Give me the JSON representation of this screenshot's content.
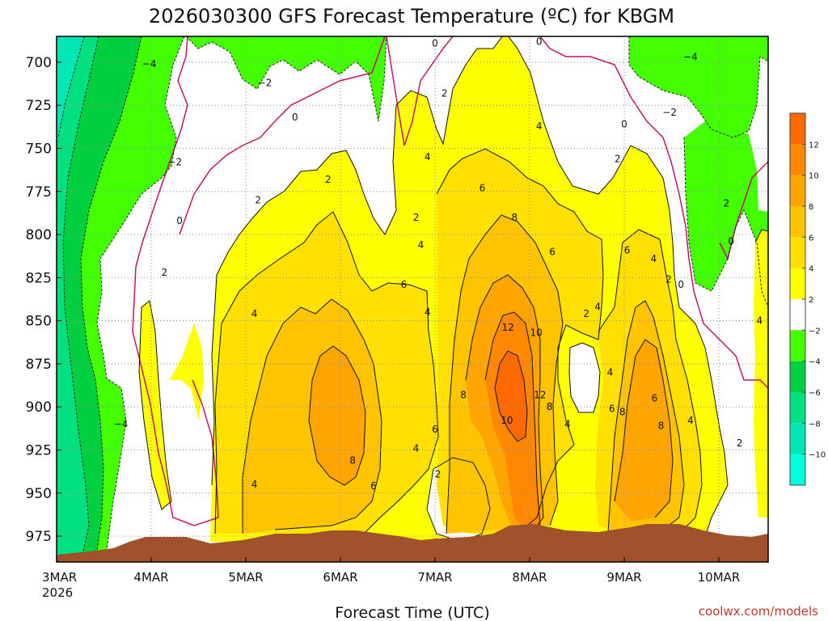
{
  "chart_data": {
    "type": "heatmap",
    "title": "2026030300 GFS Forecast Temperature (ºC) for KBGM",
    "xlabel": "Forecast Time (UTC)",
    "ylabel": "",
    "x_ticks": [
      "3MAR",
      "4MAR",
      "5MAR",
      "6MAR",
      "7MAR",
      "8MAR",
      "9MAR",
      "10MAR"
    ],
    "x_year": "2026",
    "y_ticks": [
      700,
      725,
      750,
      775,
      800,
      825,
      850,
      875,
      900,
      925,
      950,
      975
    ],
    "ylim": [
      685,
      990
    ],
    "colorbar": {
      "levels": [
        12,
        10,
        8,
        6,
        4,
        2,
        -2,
        -4,
        -6,
        -8,
        -10
      ],
      "labels": [
        "12",
        "10",
        "8",
        "6",
        "4",
        "2",
        "−2",
        "−4",
        "−6",
        "−8",
        "−10"
      ],
      "colors": [
        "#ff6a00",
        "#ff8800",
        "#ffa500",
        "#ffc400",
        "#ffe000",
        "#ffff00",
        "#ffffff",
        "#44ff00",
        "#00d040",
        "#00e080",
        "#00e6b4",
        "#00ffdc"
      ]
    },
    "contour_labels": [
      {
        "text": "−4",
        "day": 0.98,
        "p": 701
      },
      {
        "text": "−2",
        "day": 2.2,
        "p": 712
      },
      {
        "text": "0",
        "day": 2.52,
        "p": 732
      },
      {
        "text": "0",
        "day": 4.0,
        "p": 689
      },
      {
        "text": "0",
        "day": 5.1,
        "p": 688
      },
      {
        "text": "−2",
        "day": 1.25,
        "p": 758
      },
      {
        "text": "0",
        "day": 1.3,
        "p": 792
      },
      {
        "text": "2",
        "day": 1.14,
        "p": 822
      },
      {
        "text": "2",
        "day": 2.13,
        "p": 780
      },
      {
        "text": "2",
        "day": 2.87,
        "p": 768
      },
      {
        "text": "2",
        "day": 3.8,
        "p": 790
      },
      {
        "text": "2",
        "day": 4.1,
        "p": 718
      },
      {
        "text": "4",
        "day": 3.85,
        "p": 806
      },
      {
        "text": "6",
        "day": 3.67,
        "p": 829
      },
      {
        "text": "4",
        "day": 2.09,
        "p": 846
      },
      {
        "text": "4",
        "day": 3.92,
        "p": 755
      },
      {
        "text": "6",
        "day": 4.5,
        "p": 773
      },
      {
        "text": "8",
        "day": 4.84,
        "p": 790
      },
      {
        "text": "6",
        "day": 5.24,
        "p": 810
      },
      {
        "text": "4",
        "day": 5.1,
        "p": 737
      },
      {
        "text": "2",
        "day": 5.93,
        "p": 756
      },
      {
        "text": "4",
        "day": 3.92,
        "p": 845
      },
      {
        "text": "12",
        "day": 4.77,
        "p": 854
      },
      {
        "text": "10",
        "day": 5.07,
        "p": 857
      },
      {
        "text": "12",
        "day": 5.11,
        "p": 893
      },
      {
        "text": "8",
        "day": 5.21,
        "p": 900
      },
      {
        "text": "10",
        "day": 4.76,
        "p": 908
      },
      {
        "text": "8",
        "day": 4.3,
        "p": 893
      },
      {
        "text": "6",
        "day": 4.0,
        "p": 913
      },
      {
        "text": "4",
        "day": 3.8,
        "p": 924
      },
      {
        "text": "2",
        "day": 4.03,
        "p": 939
      },
      {
        "text": "4",
        "day": 5.4,
        "p": 910
      },
      {
        "text": "8",
        "day": 3.13,
        "p": 931
      },
      {
        "text": "6",
        "day": 3.35,
        "p": 946
      },
      {
        "text": "4",
        "day": 2.09,
        "p": 945
      },
      {
        "text": "2",
        "day": 5.6,
        "p": 846
      },
      {
        "text": "4",
        "day": 5.72,
        "p": 842
      },
      {
        "text": "4",
        "day": 5.85,
        "p": 880
      },
      {
        "text": "6",
        "day": 5.87,
        "p": 901
      },
      {
        "text": "8",
        "day": 5.98,
        "p": 903
      },
      {
        "text": "6",
        "day": 6.03,
        "p": 809
      },
      {
        "text": "4",
        "day": 6.31,
        "p": 814
      },
      {
        "text": "2",
        "day": 6.47,
        "p": 826
      },
      {
        "text": "0",
        "day": 6.6,
        "p": 829
      },
      {
        "text": "6",
        "day": 6.32,
        "p": 895
      },
      {
        "text": "8",
        "day": 6.39,
        "p": 911
      },
      {
        "text": "4",
        "day": 6.7,
        "p": 908
      },
      {
        "text": "2",
        "day": 7.22,
        "p": 921
      },
      {
        "text": "4",
        "day": 7.43,
        "p": 850
      },
      {
        "text": "0",
        "day": 6.0,
        "p": 736
      },
      {
        "text": "−2",
        "day": 6.48,
        "p": 729
      },
      {
        "text": "−4",
        "day": 6.7,
        "p": 697
      },
      {
        "text": "2",
        "day": 7.08,
        "p": 782
      },
      {
        "text": "0",
        "day": 7.13,
        "p": 804
      },
      {
        "text": "−4",
        "day": 0.68,
        "p": 910
      }
    ],
    "annotations": [
      "coolwx.com/models"
    ]
  }
}
